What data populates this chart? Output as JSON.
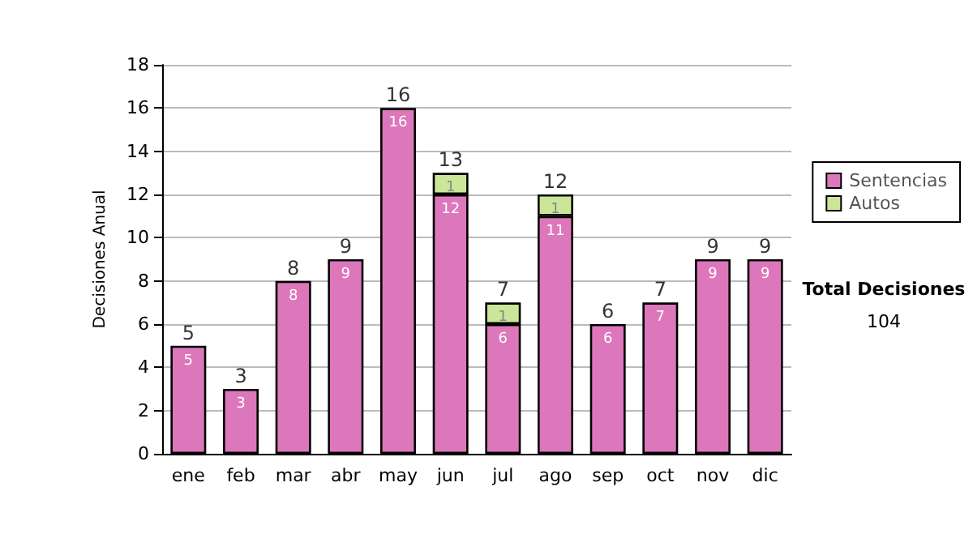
{
  "chart_data": {
    "type": "bar",
    "ylabel": "Decisiones Anual",
    "categories": [
      "ene",
      "feb",
      "mar",
      "abr",
      "may",
      "jun",
      "jul",
      "ago",
      "sep",
      "oct",
      "nov",
      "dic"
    ],
    "series": [
      {
        "name": "Sentencias",
        "color": "#dd77bb",
        "values": [
          5,
          3,
          8,
          9,
          16,
          12,
          6,
          11,
          6,
          7,
          9,
          9
        ]
      },
      {
        "name": "Autos",
        "color": "#cce699",
        "values": [
          null,
          null,
          null,
          null,
          null,
          1,
          1,
          1,
          null,
          null,
          null,
          null
        ]
      }
    ],
    "stacked": true,
    "data_labels": true,
    "totals": [
      "5",
      "3",
      "8",
      "9",
      "16",
      "13",
      "7",
      "12",
      "6",
      "7",
      "9",
      "9"
    ],
    "ylim": [
      0,
      18
    ],
    "yticks": [
      0,
      2,
      4,
      6,
      8,
      10,
      12,
      14,
      16,
      18
    ],
    "grid": "y",
    "legend": "right",
    "annotations": [
      "Total Decisiones",
      "104"
    ]
  }
}
